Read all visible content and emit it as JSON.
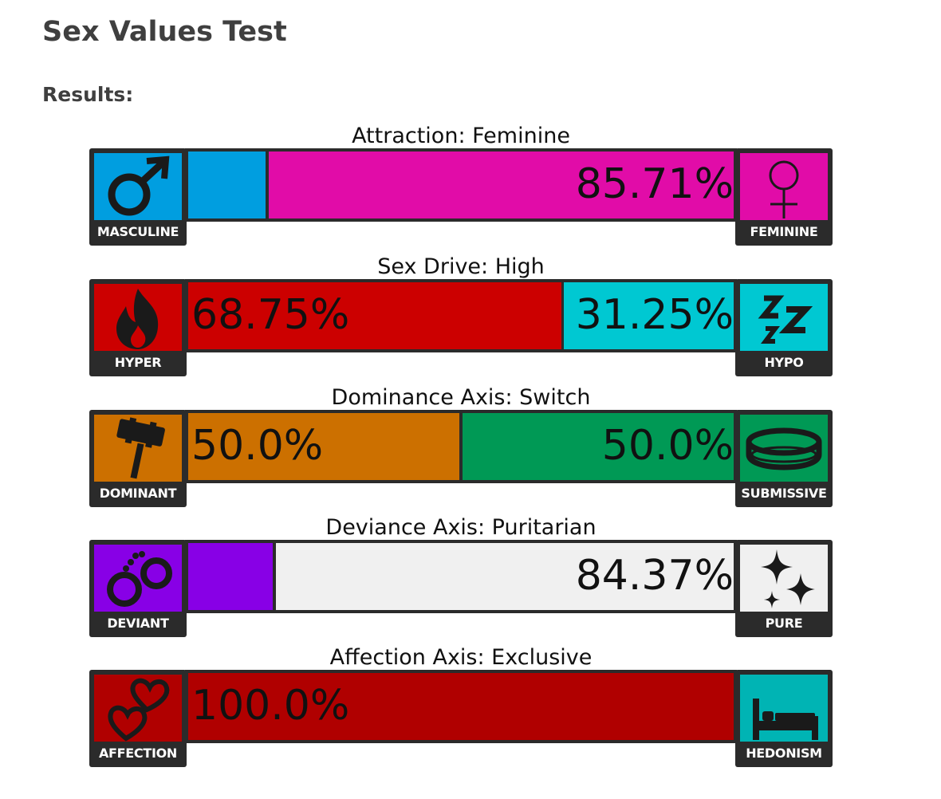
{
  "page": {
    "title": "Sex Values Test",
    "subtitle": "Results:"
  },
  "axes": [
    {
      "label": "Attraction: Feminine",
      "left": {
        "name": "MASCULINE",
        "icon": "male-symbol-icon",
        "color": "#009ee0",
        "value": 14.29,
        "text": ""
      },
      "right": {
        "name": "FEMININE",
        "icon": "female-symbol-icon",
        "color": "#e10ca8",
        "value": 85.71,
        "text": "85.71%"
      }
    },
    {
      "label": "Sex Drive: High",
      "left": {
        "name": "HYPER",
        "icon": "flame-icon",
        "color": "#cc0000",
        "value": 68.75,
        "text": "68.75%"
      },
      "right": {
        "name": "HYPO",
        "icon": "sleep-zzz-icon",
        "color": "#00c8d2",
        "value": 31.25,
        "text": "31.25%"
      }
    },
    {
      "label": "Dominance Axis: Switch",
      "left": {
        "name": "DOMINANT",
        "icon": "gavel-icon",
        "color": "#cc7000",
        "value": 50.0,
        "text": "50.0%"
      },
      "right": {
        "name": "SUBMISSIVE",
        "icon": "collar-icon",
        "color": "#009955",
        "value": 50.0,
        "text": "50.0%"
      }
    },
    {
      "label": "Deviance Axis: Puritarian",
      "left": {
        "name": "DEVIANT",
        "icon": "handcuffs-icon",
        "color": "#8800e6",
        "value": 15.63,
        "text": ""
      },
      "right": {
        "name": "PURE",
        "icon": "sparkles-icon",
        "color": "#f0f0f0",
        "value": 84.37,
        "text": "84.37%"
      }
    },
    {
      "label": "Affection Axis: Exclusive",
      "left": {
        "name": "AFFECTION",
        "icon": "hearts-icon",
        "color": "#b00000",
        "value": 100.0,
        "text": "100.0%"
      },
      "right": {
        "name": "HEDONISM",
        "icon": "bed-icon",
        "color": "#00b4b4",
        "value": 0.0,
        "text": ""
      }
    }
  ]
}
